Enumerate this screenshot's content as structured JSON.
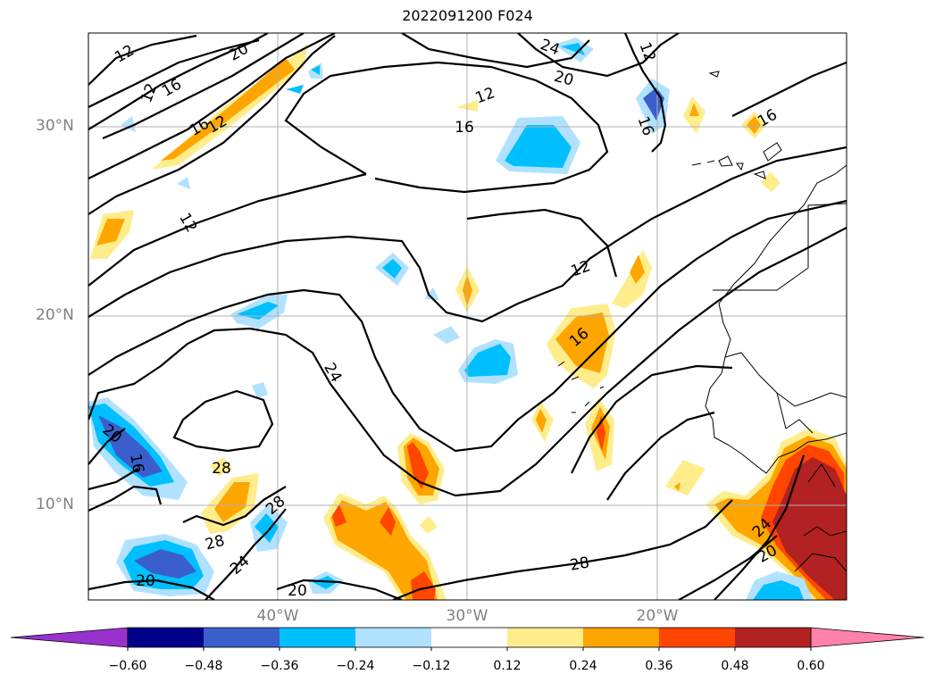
{
  "title": "2022091200 F024",
  "latitude_labels": [
    "30°N",
    "20°N",
    "10°N"
  ],
  "longitude_labels": [
    "40°W",
    "30°W",
    "20°W"
  ],
  "colorbar": {
    "ticks": [
      "−0.60",
      "−0.48",
      "−0.36",
      "−0.24",
      "−0.12",
      "0.12",
      "0.24",
      "0.36",
      "0.48",
      "0.60"
    ],
    "colors": [
      "#9932cc",
      "#00008b",
      "#3a5fcd",
      "#00bfff",
      "#b0e2ff",
      "#ffffff",
      "#ffec8b",
      "#ffa500",
      "#ff4500",
      "#b22222",
      "#ff82ab"
    ],
    "extend": "both"
  },
  "contour_labels": [
    "12",
    "20",
    "12",
    "16",
    "16",
    "12",
    "12",
    "16",
    "24",
    "20",
    "12",
    "16",
    "16",
    "12",
    "16",
    "24",
    "20",
    "16",
    "28",
    "28",
    "28",
    "24",
    "20",
    "20",
    "28",
    "24",
    "20"
  ]
}
